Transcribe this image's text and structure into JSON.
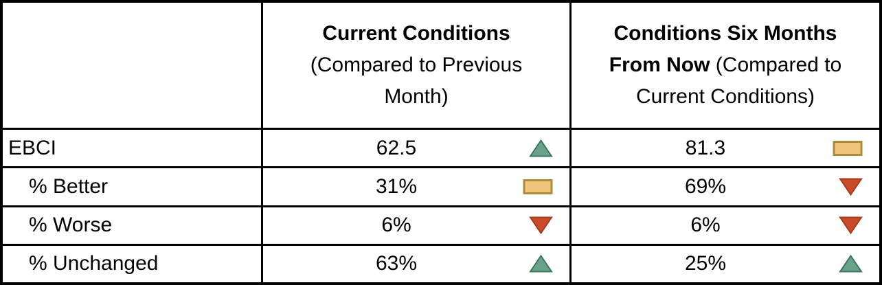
{
  "header": {
    "col2_bold": "Current Conditions",
    "col2_note": "(Compared to Previous Month)",
    "col3_bold": "Conditions Six Months From Now",
    "col3_note": "(Compared to Current Conditions)"
  },
  "rows": [
    {
      "label": "EBCI",
      "indent": false,
      "current": {
        "value": "62.5",
        "trend": "up"
      },
      "future": {
        "value": "81.3",
        "trend": "flat"
      }
    },
    {
      "label": "% Better",
      "indent": true,
      "current": {
        "value": "31%",
        "trend": "flat"
      },
      "future": {
        "value": "69%",
        "trend": "down"
      }
    },
    {
      "label": "% Worse",
      "indent": true,
      "current": {
        "value": "6%",
        "trend": "down"
      },
      "future": {
        "value": "6%",
        "trend": "down"
      }
    },
    {
      "label": "% Unchanged",
      "indent": true,
      "current": {
        "value": "63%",
        "trend": "up"
      },
      "future": {
        "value": "25%",
        "trend": "up"
      }
    }
  ],
  "colors": {
    "up_fill": "#69A189",
    "up_stroke": "#3E7560",
    "down_fill": "#CB4A28",
    "down_stroke": "#A63C1D",
    "flat_fill": "#EFC47F",
    "flat_stroke": "#AA8C3C",
    "border": "#000000"
  },
  "icon_names": {
    "up": "trend-up-icon",
    "down": "trend-down-icon",
    "flat": "trend-flat-icon"
  },
  "chart_data": {
    "type": "table",
    "title": "",
    "row_labels": [
      "EBCI",
      "% Better",
      "% Worse",
      "% Unchanged"
    ],
    "columns": [
      "Current Conditions (Compared to Previous Month)",
      "Conditions Six Months From Now (Compared to Current Conditions)"
    ],
    "series": [
      {
        "name": "Current Conditions (Compared to Previous Month)",
        "values": [
          "62.5",
          "31%",
          "6%",
          "63%"
        ],
        "trends": [
          "up",
          "flat",
          "down",
          "up"
        ]
      },
      {
        "name": "Conditions Six Months From Now (Compared to Current Conditions)",
        "values": [
          "81.3",
          "69%",
          "6%",
          "25%"
        ],
        "trends": [
          "flat",
          "down",
          "down",
          "up"
        ]
      }
    ],
    "legend_position": "none",
    "grid": true
  }
}
